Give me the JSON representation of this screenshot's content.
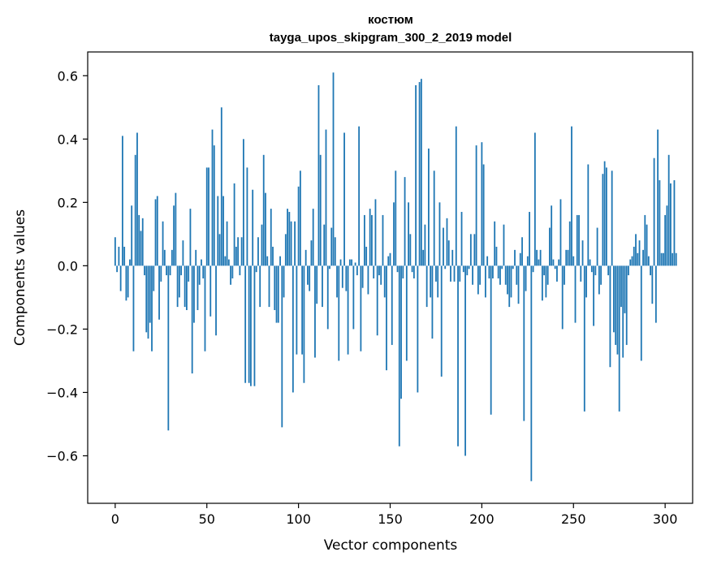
{
  "chart_data": {
    "type": "bar",
    "title": "костюм",
    "subtitle": "tayga_upos_skipgram_300_2_2019 model",
    "xlabel": "Vector components",
    "ylabel": "Components values",
    "xlim": [
      -15,
      315
    ],
    "ylim": [
      -0.75,
      0.675
    ],
    "xticks": [
      0,
      50,
      100,
      150,
      200,
      250,
      300
    ],
    "xtick_labels": [
      "0",
      "50",
      "100",
      "150",
      "200",
      "250",
      "300"
    ],
    "yticks": [
      -0.6,
      -0.4,
      -0.2,
      0.0,
      0.2,
      0.4,
      0.6
    ],
    "ytick_labels": [
      "−0.6",
      "−0.4",
      "−0.2",
      "0.0",
      "0.2",
      "0.4",
      "0.6"
    ],
    "grid": false,
    "bar_color": "#1f77b4",
    "values": [
      0.09,
      -0.02,
      0.06,
      -0.08,
      0.41,
      0.06,
      -0.11,
      -0.1,
      0.02,
      0.19,
      -0.27,
      0.35,
      0.42,
      0.16,
      0.11,
      0.15,
      -0.03,
      -0.21,
      -0.23,
      -0.18,
      -0.27,
      -0.08,
      0.21,
      0.22,
      -0.17,
      -0.05,
      0.14,
      0.05,
      -0.03,
      -0.52,
      -0.03,
      0.05,
      0.19,
      0.23,
      -0.13,
      -0.1,
      -0.03,
      0.08,
      -0.13,
      -0.14,
      -0.05,
      0.18,
      -0.34,
      -0.18,
      0.05,
      -0.14,
      -0.06,
      0.02,
      -0.04,
      -0.27,
      0.31,
      0.31,
      -0.16,
      0.43,
      0.38,
      -0.22,
      0.22,
      0.1,
      0.5,
      0.22,
      0.03,
      0.14,
      0.02,
      -0.06,
      -0.04,
      0.26,
      0.06,
      0.09,
      -0.03,
      0.09,
      0.4,
      -0.37,
      0.31,
      -0.37,
      -0.38,
      0.24,
      -0.38,
      -0.02,
      0.09,
      -0.13,
      0.13,
      0.35,
      0.23,
      0.03,
      -0.13,
      0.18,
      0.06,
      -0.14,
      -0.18,
      -0.18,
      0.03,
      -0.51,
      -0.1,
      0.1,
      0.18,
      0.17,
      0.14,
      -0.4,
      0.14,
      -0.28,
      0.25,
      0.3,
      -0.28,
      -0.37,
      0.05,
      -0.06,
      -0.08,
      0.08,
      0.18,
      -0.29,
      -0.12,
      0.57,
      0.35,
      -0.13,
      0.13,
      0.43,
      -0.2,
      -0.01,
      0.12,
      0.61,
      0.09,
      -0.1,
      -0.3,
      0.02,
      -0.07,
      0.42,
      -0.08,
      -0.28,
      0.02,
      0.02,
      -0.2,
      0.01,
      -0.03,
      0.44,
      -0.27,
      -0.07,
      0.16,
      0.06,
      -0.09,
      0.18,
      0.16,
      -0.04,
      0.21,
      -0.22,
      -0.03,
      -0.06,
      0.16,
      -0.1,
      -0.33,
      0.03,
      0.04,
      -0.25,
      0.2,
      0.3,
      -0.02,
      -0.57,
      -0.42,
      -0.04,
      0.28,
      -0.3,
      0.2,
      0.1,
      -0.02,
      -0.04,
      0.57,
      -0.4,
      0.58,
      0.59,
      0.05,
      0.13,
      -0.13,
      0.37,
      -0.1,
      -0.23,
      0.3,
      -0.05,
      -0.1,
      0.2,
      -0.35,
      0.12,
      -0.01,
      0.15,
      0.08,
      -0.05,
      0.05,
      -0.05,
      0.44,
      -0.57,
      -0.05,
      0.17,
      -0.02,
      -0.6,
      -0.03,
      -0.01,
      0.1,
      -0.06,
      0.1,
      0.38,
      -0.09,
      -0.06,
      0.39,
      0.32,
      -0.1,
      0.03,
      -0.04,
      -0.47,
      -0.04,
      0.14,
      0.06,
      -0.04,
      -0.06,
      -0.01,
      0.13,
      -0.06,
      -0.09,
      -0.13,
      -0.1,
      -0.01,
      0.05,
      -0.06,
      -0.12,
      0.04,
      0.09,
      -0.49,
      -0.08,
      0.03,
      0.17,
      -0.68,
      -0.02,
      0.42,
      0.05,
      0.02,
      0.05,
      -0.11,
      -0.03,
      -0.1,
      -0.06,
      0.12,
      0.19,
      0.02,
      -0.01,
      -0.05,
      0.02,
      0.21,
      -0.2,
      -0.06,
      0.05,
      0.05,
      0.14,
      0.44,
      0.03,
      -0.18,
      0.16,
      0.16,
      -0.05,
      0.08,
      -0.46,
      -0.1,
      0.32,
      0.02,
      -0.02,
      -0.19,
      -0.03,
      0.12,
      -0.09,
      -0.06,
      0.29,
      0.33,
      0.31,
      -0.03,
      -0.32,
      0.3,
      -0.21,
      -0.25,
      -0.28,
      -0.46,
      -0.13,
      -0.29,
      -0.15,
      -0.25,
      -0.03,
      0.02,
      0.03,
      0.06,
      0.1,
      0.04,
      0.08,
      -0.3,
      0.05,
      0.16,
      0.13,
      0.03,
      -0.03,
      -0.12,
      0.34,
      -0.18,
      0.43,
      0.27,
      0.04,
      0.04,
      0.16,
      0.19,
      0.35,
      0.26,
      0.04,
      0.27,
      0.04
    ]
  }
}
